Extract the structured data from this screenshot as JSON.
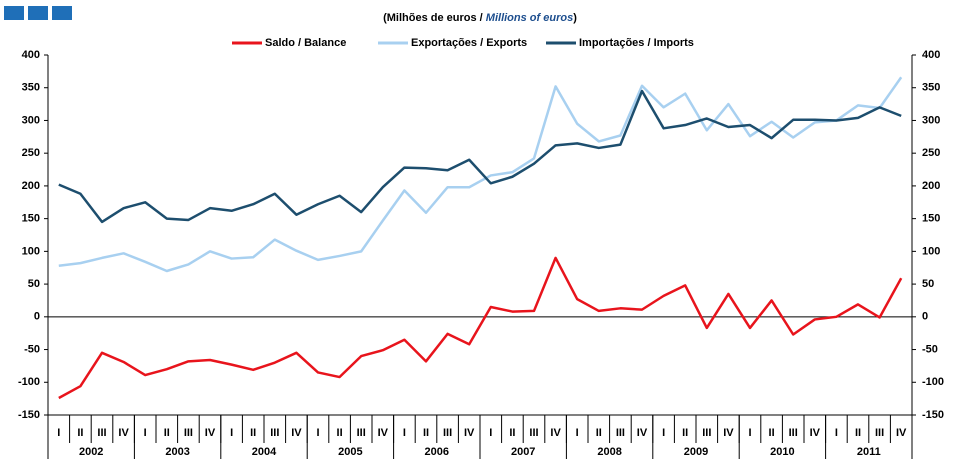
{
  "chart_data": {
    "type": "line",
    "subtitle": [
      "(Milhões de euros / ",
      "Millions of euros",
      ")"
    ],
    "categories": [
      "I",
      "II",
      "III",
      "IV",
      "I",
      "II",
      "III",
      "IV",
      "I",
      "II",
      "III",
      "IV",
      "I",
      "II",
      "III",
      "IV",
      "I",
      "II",
      "III",
      "IV",
      "I",
      "II",
      "III",
      "IV",
      "I",
      "II",
      "III",
      "IV",
      "I",
      "II",
      "III",
      "IV",
      "I",
      "II",
      "III",
      "IV",
      "I",
      "II",
      "III",
      "IV"
    ],
    "years": [
      "2002",
      "2003",
      "2004",
      "2005",
      "2006",
      "2007",
      "2008",
      "2009",
      "2010",
      "2011"
    ],
    "ylim": [
      -150,
      400
    ],
    "yticks": [
      -150,
      -100,
      -50,
      0,
      50,
      100,
      150,
      200,
      250,
      300,
      350,
      400
    ],
    "series": [
      {
        "name": "Saldo / Balance",
        "color": "#e8141c",
        "values": [
          -124,
          -106,
          -55,
          -69,
          -89,
          -80,
          -68,
          -66,
          -73,
          -81,
          -70,
          -55,
          -85,
          -92,
          -60,
          -51,
          -35,
          -68,
          -26,
          -42,
          15,
          8,
          9,
          90,
          27,
          9,
          13,
          11,
          32,
          48,
          -17,
          35,
          -17,
          25,
          -27,
          -4,
          0,
          19,
          -1,
          59
        ]
      },
      {
        "name": "Exportações / Exports",
        "color": "#a8d0f0",
        "values": [
          78,
          82,
          90,
          97,
          84,
          70,
          80,
          100,
          89,
          91,
          118,
          101,
          87,
          93,
          100,
          147,
          193,
          159,
          198,
          198,
          216,
          221,
          242,
          352,
          295,
          268,
          277,
          353,
          320,
          341,
          285,
          325,
          276,
          298,
          274,
          297,
          300,
          323,
          319,
          366
        ]
      },
      {
        "name": "Importações / Imports",
        "color": "#1d4e6e",
        "values": [
          202,
          188,
          145,
          166,
          175,
          150,
          148,
          166,
          162,
          172,
          188,
          156,
          172,
          185,
          160,
          198,
          228,
          227,
          224,
          240,
          204,
          214,
          234,
          262,
          265,
          258,
          263,
          345,
          288,
          293,
          303,
          290,
          293,
          273,
          301,
          301,
          300,
          304,
          320,
          307
        ]
      }
    ]
  }
}
